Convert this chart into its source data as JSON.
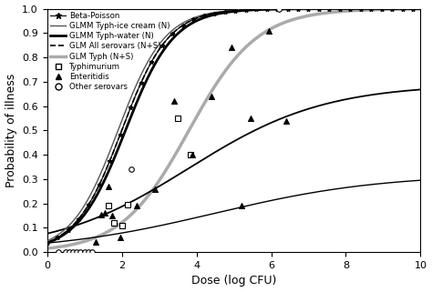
{
  "title": "",
  "xlabel": "Dose (log CFU)",
  "ylabel": "Probability of illness",
  "xlim": [
    0,
    10
  ],
  "ylim": [
    0,
    1.0
  ],
  "xticks": [
    0,
    2,
    4,
    6,
    8,
    10
  ],
  "yticks": [
    0.0,
    0.1,
    0.2,
    0.3,
    0.4,
    0.5,
    0.6,
    0.7,
    0.8,
    0.9,
    1.0
  ],
  "beta_poisson": {
    "label": "Beta-Poisson",
    "color": "#000000",
    "lw": 0.8,
    "midpoint": 2.0,
    "steepness": 1.6
  },
  "glmm_ice_cream": {
    "label": "GLMM Typh-ice cream (N)",
    "color": "#555555",
    "lw": 1.0,
    "linestyle": "-",
    "midpoint": 1.9,
    "steepness": 1.6
  },
  "glmm_water": {
    "label": "GLMM Typh-water (N)",
    "color": "#000000",
    "lw": 2.0,
    "linestyle": "-",
    "plateau": 1.0,
    "midpoint": 2.1,
    "steepness": 1.55
  },
  "glm_all": {
    "label": "GLM All serovars (N+S)",
    "color": "#000000",
    "lw": 1.2,
    "linestyle": "--",
    "midpoint": 2.0,
    "steepness": 1.6
  },
  "glm_typh": {
    "label": "GLM Typh (N+S)",
    "color": "#aaaaaa",
    "lw": 2.5,
    "linestyle": "-",
    "midpoint": 3.8,
    "steepness": 1.1
  },
  "low_curve_upper": {
    "plateau": 0.69,
    "midpoint": 3.8,
    "steepness": 0.55,
    "color": "#000000",
    "lw": 1.3
  },
  "low_curve_lower": {
    "plateau": 0.32,
    "midpoint": 4.5,
    "steepness": 0.45,
    "color": "#000000",
    "lw": 1.0
  },
  "typhimurium_x": [
    1.65,
    1.8,
    2.0,
    2.15,
    3.5,
    3.85
  ],
  "typhimurium_y": [
    0.19,
    0.12,
    0.11,
    0.195,
    0.55,
    0.4
  ],
  "enteritidis_x": [
    1.3,
    1.45,
    1.55,
    1.65,
    1.75,
    1.95,
    2.4,
    2.9,
    3.4,
    3.9,
    4.4,
    4.95,
    5.2,
    5.45,
    5.95,
    6.4
  ],
  "enteritidis_y": [
    0.04,
    0.155,
    0.16,
    0.27,
    0.15,
    0.06,
    0.19,
    0.26,
    0.62,
    0.4,
    0.64,
    0.84,
    0.19,
    0.55,
    0.91,
    0.54
  ],
  "other_x": [
    0.3,
    0.5,
    0.6,
    0.7,
    0.8,
    0.9,
    1.0,
    1.1,
    1.2,
    2.25,
    6.2
  ],
  "other_y": [
    0.0,
    0.0,
    0.0,
    0.0,
    0.0,
    0.0,
    0.0,
    0.0,
    0.0,
    0.34,
    1.0
  ]
}
